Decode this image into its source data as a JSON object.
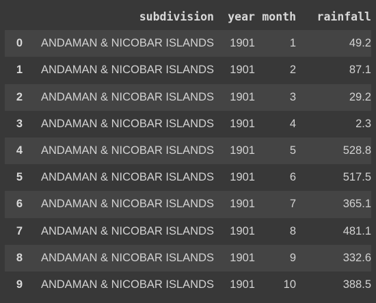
{
  "table": {
    "columns": {
      "subdivision": "subdivision",
      "year": "year",
      "month": "month",
      "rainfall": "rainfall"
    },
    "rows": [
      {
        "index": "0",
        "subdivision": "ANDAMAN & NICOBAR ISLANDS",
        "year": "1901",
        "month": "1",
        "rainfall": "49.2"
      },
      {
        "index": "1",
        "subdivision": "ANDAMAN & NICOBAR ISLANDS",
        "year": "1901",
        "month": "2",
        "rainfall": "87.1"
      },
      {
        "index": "2",
        "subdivision": "ANDAMAN & NICOBAR ISLANDS",
        "year": "1901",
        "month": "3",
        "rainfall": "29.2"
      },
      {
        "index": "3",
        "subdivision": "ANDAMAN & NICOBAR ISLANDS",
        "year": "1901",
        "month": "4",
        "rainfall": "2.3"
      },
      {
        "index": "4",
        "subdivision": "ANDAMAN & NICOBAR ISLANDS",
        "year": "1901",
        "month": "5",
        "rainfall": "528.8"
      },
      {
        "index": "5",
        "subdivision": "ANDAMAN & NICOBAR ISLANDS",
        "year": "1901",
        "month": "6",
        "rainfall": "517.5"
      },
      {
        "index": "6",
        "subdivision": "ANDAMAN & NICOBAR ISLANDS",
        "year": "1901",
        "month": "7",
        "rainfall": "365.1"
      },
      {
        "index": "7",
        "subdivision": "ANDAMAN & NICOBAR ISLANDS",
        "year": "1901",
        "month": "8",
        "rainfall": "481.1"
      },
      {
        "index": "8",
        "subdivision": "ANDAMAN & NICOBAR ISLANDS",
        "year": "1901",
        "month": "9",
        "rainfall": "332.6"
      },
      {
        "index": "9",
        "subdivision": "ANDAMAN & NICOBAR ISLANDS",
        "year": "1901",
        "month": "10",
        "rainfall": "388.5"
      }
    ]
  }
}
